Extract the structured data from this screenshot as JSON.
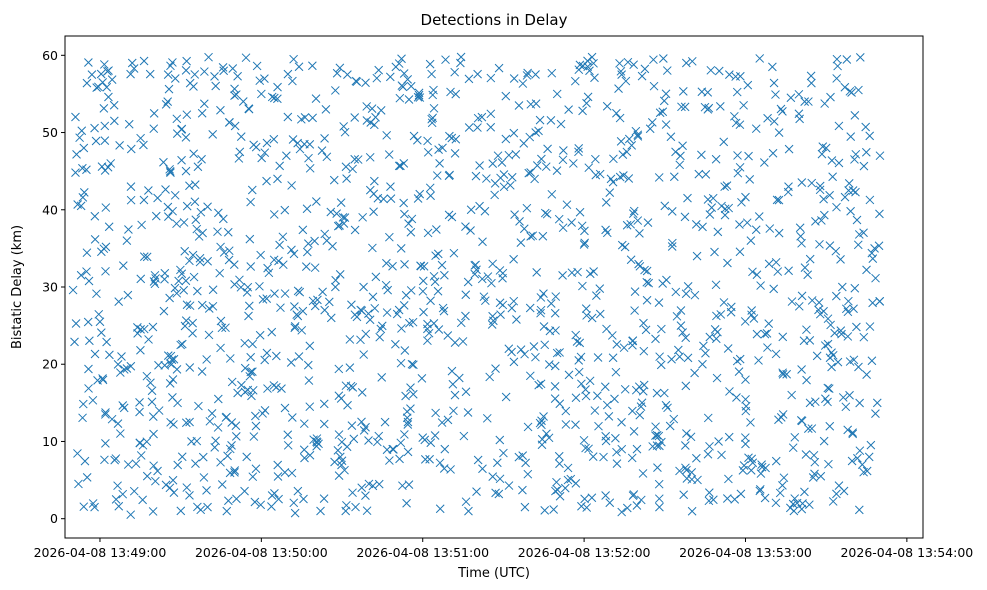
{
  "chart_data": {
    "type": "scatter",
    "title": "Detections in Delay",
    "xlabel": "Time (UTC)",
    "ylabel": "Bistatic Delay (km)",
    "marker": "x",
    "color": "#1f77b4",
    "grid": false,
    "legend": "none",
    "xlim": [
      "2026-04-08 13:48:47",
      "2026-04-08 13:54:06"
    ],
    "ylim": [
      -2.5,
      62.5
    ],
    "xticks": [
      "2026-04-08 13:49:00",
      "2026-04-08 13:50:00",
      "2026-04-08 13:51:00",
      "2026-04-08 13:52:00",
      "2026-04-08 13:53:00",
      "2026-04-08 13:54:00"
    ],
    "yticks": [
      "0",
      "10",
      "20",
      "30",
      "40",
      "50",
      "60"
    ],
    "approx_point_count": 1500,
    "data_range": {
      "x": [
        "2026-04-08 13:48:50",
        "2026-04-08 13:53:50"
      ],
      "y": [
        0.5,
        59.8
      ]
    },
    "series": [
      {
        "points": [
          [
            "2026-04-08 13:48:52",
            4.5
          ],
          [
            "2026-04-08 13:48:53",
            40.5
          ],
          [
            "2026-04-08 13:48:54",
            48.0
          ],
          [
            "2026-04-08 13:48:55",
            32.0
          ],
          [
            "2026-04-08 13:48:57",
            57.5
          ],
          [
            "2026-04-08 13:48:58",
            1.5
          ],
          [
            "2026-04-08 13:49:00",
            25.5
          ],
          [
            "2026-04-08 13:49:01",
            56.5
          ],
          [
            "2026-04-08 13:49:02",
            13.5
          ],
          [
            "2026-04-08 13:49:04",
            46.0
          ],
          [
            "2026-04-08 13:49:06",
            2.5
          ],
          [
            "2026-04-08 13:49:08",
            21.0
          ],
          [
            "2026-04-08 13:49:10",
            36.0
          ],
          [
            "2026-04-08 13:49:12",
            59.0
          ],
          [
            "2026-04-08 13:49:14",
            24.0
          ],
          [
            "2026-04-08 13:49:16",
            9.5
          ],
          [
            "2026-04-08 13:49:18",
            42.5
          ],
          [
            "2026-04-08 13:49:20",
            50.5
          ],
          [
            "2026-04-08 13:49:22",
            14.0
          ],
          [
            "2026-04-08 13:49:24",
            31.0
          ],
          [
            "2026-04-08 13:49:26",
            4.0
          ],
          [
            "2026-04-08 13:49:28",
            57.0
          ],
          [
            "2026-04-08 13:49:30",
            22.5
          ],
          [
            "2026-04-08 13:49:32",
            45.0
          ],
          [
            "2026-04-08 13:49:34",
            10.0
          ],
          [
            "2026-04-08 13:49:36",
            37.5
          ],
          [
            "2026-04-08 13:49:38",
            52.5
          ],
          [
            "2026-04-08 13:49:40",
            1.5
          ],
          [
            "2026-04-08 13:49:42",
            27.5
          ],
          [
            "2026-04-08 13:49:44",
            15.5
          ],
          [
            "2026-04-08 13:49:46",
            58.0
          ],
          [
            "2026-04-08 13:49:48",
            33.5
          ],
          [
            "2026-04-08 13:49:50",
            6.0
          ],
          [
            "2026-04-08 13:49:52",
            47.5
          ],
          [
            "2026-04-08 13:49:54",
            19.5
          ],
          [
            "2026-04-08 13:49:56",
            41.0
          ],
          [
            "2026-04-08 13:49:58",
            12.0
          ],
          [
            "2026-04-08 13:50:00",
            55.0
          ],
          [
            "2026-04-08 13:50:02",
            28.5
          ],
          [
            "2026-04-08 13:50:04",
            3.0
          ],
          [
            "2026-04-08 13:50:06",
            44.0
          ],
          [
            "2026-04-08 13:50:08",
            36.5
          ],
          [
            "2026-04-08 13:50:10",
            9.5
          ],
          [
            "2026-04-08 13:50:12",
            59.5
          ],
          [
            "2026-04-08 13:50:14",
            21.0
          ],
          [
            "2026-04-08 13:50:16",
            48.5
          ],
          [
            "2026-04-08 13:50:18",
            14.5
          ],
          [
            "2026-04-08 13:50:20",
            32.5
          ],
          [
            "2026-04-08 13:50:22",
            1.0
          ],
          [
            "2026-04-08 13:50:24",
            53.0
          ],
          [
            "2026-04-08 13:50:26",
            26.0
          ],
          [
            "2026-04-08 13:50:28",
            39.5
          ],
          [
            "2026-04-08 13:50:30",
            7.5
          ],
          [
            "2026-04-08 13:50:32",
            57.5
          ],
          [
            "2026-04-08 13:50:34",
            17.0
          ],
          [
            "2026-04-08 13:50:36",
            46.5
          ],
          [
            "2026-04-08 13:50:38",
            30.0
          ],
          [
            "2026-04-08 13:50:40",
            4.5
          ],
          [
            "2026-04-08 13:50:42",
            51.0
          ],
          [
            "2026-04-08 13:50:44",
            23.5
          ],
          [
            "2026-04-08 13:50:46",
            12.5
          ],
          [
            "2026-04-08 13:50:48",
            43.0
          ],
          [
            "2026-04-08 13:50:50",
            58.5
          ],
          [
            "2026-04-08 13:50:52",
            35.0
          ],
          [
            "2026-04-08 13:50:54",
            2.0
          ],
          [
            "2026-04-08 13:50:56",
            20.0
          ],
          [
            "2026-04-08 13:50:58",
            49.0
          ],
          [
            "2026-04-08 13:51:00",
            10.5
          ],
          [
            "2026-04-08 13:51:02",
            37.0
          ],
          [
            "2026-04-08 13:51:04",
            55.5
          ],
          [
            "2026-04-08 13:51:06",
            24.5
          ],
          [
            "2026-04-08 13:51:08",
            6.5
          ],
          [
            "2026-04-08 13:51:10",
            44.5
          ],
          [
            "2026-04-08 13:51:12",
            16.0
          ],
          [
            "2026-04-08 13:51:14",
            59.0
          ],
          [
            "2026-04-08 13:51:16",
            29.0
          ],
          [
            "2026-04-08 13:51:18",
            40.0
          ],
          [
            "2026-04-08 13:51:20",
            3.5
          ],
          [
            "2026-04-08 13:51:22",
            52.0
          ],
          [
            "2026-04-08 13:51:24",
            13.0
          ],
          [
            "2026-04-08 13:51:26",
            33.0
          ],
          [
            "2026-04-08 13:51:28",
            47.0
          ],
          [
            "2026-04-08 13:51:30",
            8.5
          ],
          [
            "2026-04-08 13:51:32",
            22.0
          ],
          [
            "2026-04-08 13:51:34",
            57.0
          ],
          [
            "2026-04-08 13:51:36",
            38.5
          ],
          [
            "2026-04-08 13:51:38",
            1.5
          ],
          [
            "2026-04-08 13:51:40",
            18.5
          ],
          [
            "2026-04-08 13:51:42",
            50.0
          ],
          [
            "2026-04-08 13:51:44",
            27.0
          ],
          [
            "2026-04-08 13:51:46",
            11.0
          ],
          [
            "2026-04-08 13:51:48",
            42.0
          ],
          [
            "2026-04-08 13:51:50",
            55.0
          ],
          [
            "2026-04-08 13:51:52",
            31.5
          ],
          [
            "2026-04-08 13:51:54",
            5.0
          ],
          [
            "2026-04-08 13:51:56",
            46.0
          ],
          [
            "2026-04-08 13:51:58",
            20.5
          ],
          [
            "2026-04-08 13:52:00",
            35.5
          ],
          [
            "2026-04-08 13:52:02",
            58.0
          ],
          [
            "2026-04-08 13:52:04",
            14.0
          ],
          [
            "2026-04-08 13:52:06",
            26.5
          ],
          [
            "2026-04-08 13:52:08",
            3.0
          ],
          [
            "2026-04-08 13:52:10",
            44.0
          ],
          [
            "2026-04-08 13:52:12",
            52.5
          ],
          [
            "2026-04-08 13:52:14",
            9.0
          ],
          [
            "2026-04-08 13:52:16",
            38.0
          ],
          [
            "2026-04-08 13:52:18",
            23.0
          ],
          [
            "2026-04-08 13:52:20",
            49.5
          ],
          [
            "2026-04-08 13:52:22",
            16.5
          ],
          [
            "2026-04-08 13:52:24",
            30.5
          ],
          [
            "2026-04-08 13:52:26",
            56.0
          ],
          [
            "2026-04-08 13:52:28",
            1.5
          ],
          [
            "2026-04-08 13:52:30",
            40.5
          ],
          [
            "2026-04-08 13:52:32",
            12.0
          ],
          [
            "2026-04-08 13:52:34",
            47.5
          ],
          [
            "2026-04-08 13:52:36",
            25.0
          ],
          [
            "2026-04-08 13:52:38",
            59.0
          ],
          [
            "2026-04-08 13:52:40",
            6.0
          ],
          [
            "2026-04-08 13:52:42",
            34.0
          ],
          [
            "2026-04-08 13:52:44",
            20.0
          ],
          [
            "2026-04-08 13:52:46",
            53.0
          ],
          [
            "2026-04-08 13:52:48",
            41.5
          ],
          [
            "2026-04-08 13:52:50",
            10.0
          ],
          [
            "2026-04-08 13:52:52",
            28.0
          ],
          [
            "2026-04-08 13:52:54",
            57.5
          ],
          [
            "2026-04-08 13:52:56",
            2.5
          ],
          [
            "2026-04-08 13:52:58",
            45.5
          ],
          [
            "2026-04-08 13:53:00",
            18.0
          ],
          [
            "2026-04-08 13:53:02",
            36.0
          ],
          [
            "2026-04-08 13:53:04",
            50.5
          ],
          [
            "2026-04-08 13:53:06",
            7.0
          ],
          [
            "2026-04-08 13:53:08",
            24.0
          ],
          [
            "2026-04-08 13:53:10",
            58.5
          ],
          [
            "2026-04-08 13:53:12",
            32.0
          ],
          [
            "2026-04-08 13:53:14",
            13.5
          ],
          [
            "2026-04-08 13:53:16",
            43.0
          ],
          [
            "2026-04-08 13:53:18",
            1.0
          ],
          [
            "2026-04-08 13:53:20",
            27.5
          ],
          [
            "2026-04-08 13:53:22",
            54.0
          ],
          [
            "2026-04-08 13:53:24",
            15.0
          ],
          [
            "2026-04-08 13:53:26",
            38.5
          ],
          [
            "2026-04-08 13:53:28",
            5.5
          ],
          [
            "2026-04-08 13:53:30",
            48.0
          ],
          [
            "2026-04-08 13:53:32",
            21.5
          ],
          [
            "2026-04-08 13:53:34",
            59.5
          ],
          [
            "2026-04-08 13:53:36",
            30.0
          ],
          [
            "2026-04-08 13:53:38",
            11.5
          ],
          [
            "2026-04-08 13:53:40",
            42.5
          ],
          [
            "2026-04-08 13:53:42",
            55.5
          ],
          [
            "2026-04-08 13:53:44",
            23.5
          ],
          [
            "2026-04-08 13:53:46",
            8.0
          ],
          [
            "2026-04-08 13:53:48",
            35.0
          ],
          [
            "2026-04-08 13:53:49",
            15.0
          ],
          [
            "2026-04-08 13:53:50",
            47.0
          ]
        ]
      }
    ]
  }
}
